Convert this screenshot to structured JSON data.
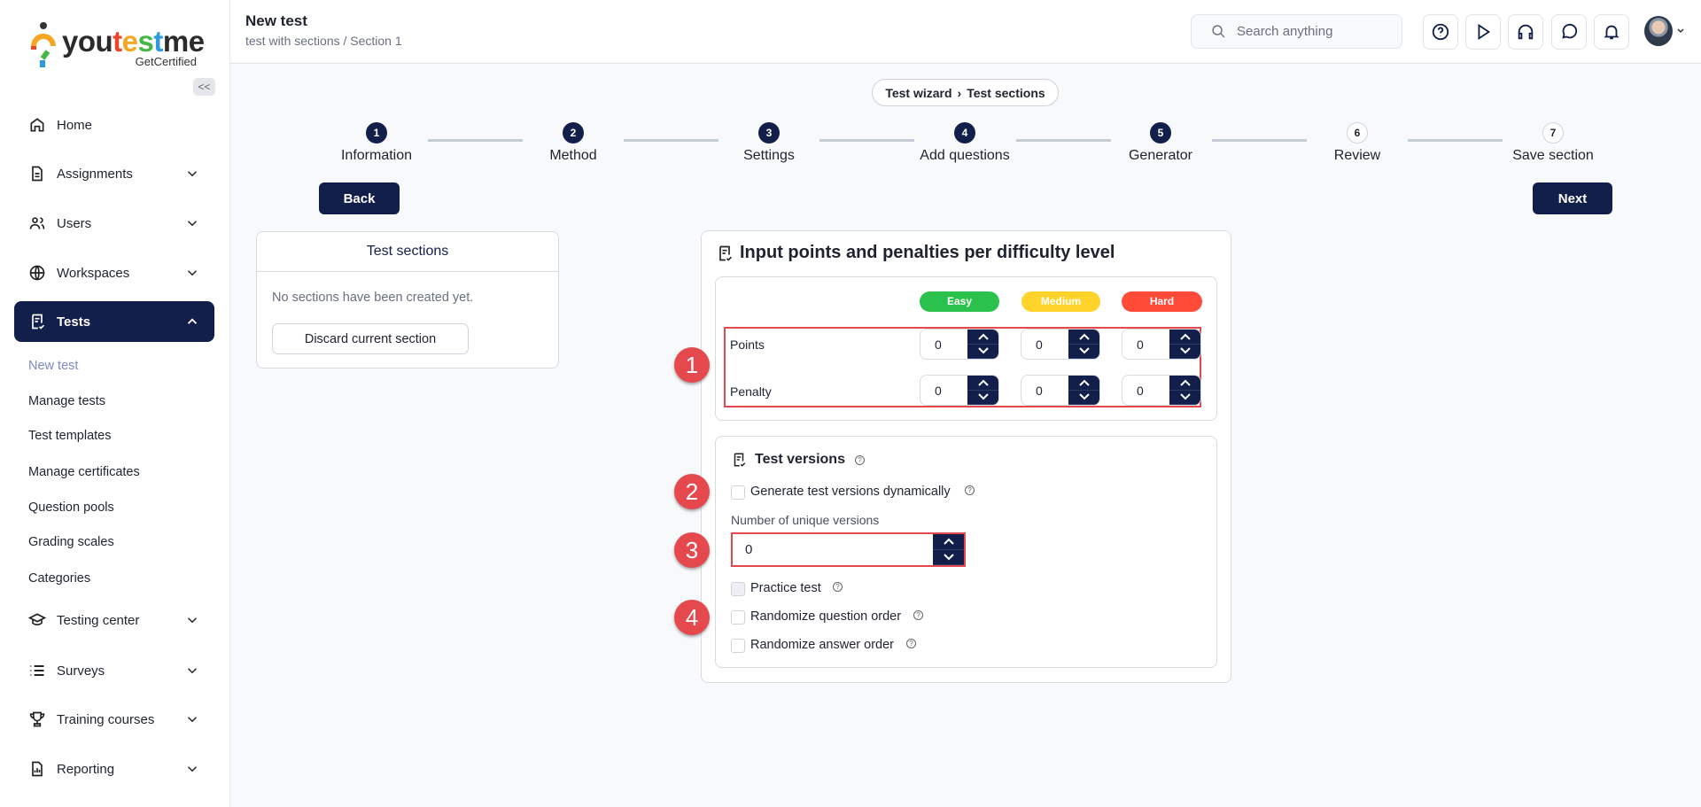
{
  "brand": {
    "name": "youtestme",
    "tagline": "GetCertified",
    "colors": {
      "navy": "#131f4b",
      "red_marker": "#e5484d"
    }
  },
  "header": {
    "title": "New test",
    "subtitle": "test with sections / Section 1",
    "search_placeholder": "Search anything",
    "icons": [
      "help-icon",
      "play-icon",
      "headset-icon",
      "chat-icon",
      "bell-icon"
    ]
  },
  "sidebar": {
    "collapse_label": "<<",
    "items": [
      {
        "label": "Home",
        "icon": "home-icon"
      },
      {
        "label": "Assignments",
        "icon": "document-icon"
      },
      {
        "label": "Users",
        "icon": "users-icon"
      },
      {
        "label": "Workspaces",
        "icon": "globe-icon"
      },
      {
        "label": "Tests",
        "icon": "test-icon",
        "active": true
      },
      {
        "label": "Testing center",
        "icon": "graduation-cap-icon"
      },
      {
        "label": "Surveys",
        "icon": "list-icon"
      },
      {
        "label": "Training courses",
        "icon": "trophy-icon"
      },
      {
        "label": "Reporting",
        "icon": "report-icon"
      }
    ],
    "sub_items": [
      "New test",
      "Manage tests",
      "Test templates",
      "Manage certificates",
      "Question pools",
      "Grading scales",
      "Categories"
    ]
  },
  "breadcrumb": [
    "Test wizard",
    "Test sections"
  ],
  "steps": [
    {
      "n": "1",
      "label": "Information",
      "done": true
    },
    {
      "n": "2",
      "label": "Method",
      "done": true
    },
    {
      "n": "3",
      "label": "Settings",
      "done": true
    },
    {
      "n": "4",
      "label": "Add questions",
      "done": true
    },
    {
      "n": "5",
      "label": "Generator",
      "done": true
    },
    {
      "n": "6",
      "label": "Review",
      "done": false
    },
    {
      "n": "7",
      "label": "Save section",
      "done": false
    }
  ],
  "buttons": {
    "back": "Back",
    "next": "Next",
    "discard": "Discard current section"
  },
  "sections_panel": {
    "title": "Test sections",
    "empty": "No sections have been created yet."
  },
  "points_panel": {
    "title": "Input points and penalties per difficulty level",
    "levels": [
      {
        "label": "Easy",
        "color": "#2ac24c"
      },
      {
        "label": "Medium",
        "color": "#ffd32a"
      },
      {
        "label": "Hard",
        "color": "#ff4b37"
      }
    ],
    "rows": [
      {
        "label": "Points",
        "values": [
          "0",
          "0",
          "0"
        ]
      },
      {
        "label": "Penalty",
        "values": [
          "0",
          "0",
          "0"
        ]
      }
    ]
  },
  "versions": {
    "title": "Test versions",
    "generate": "Generate test versions dynamically",
    "num_label": "Number of unique versions",
    "num_value": "0",
    "practice": "Practice test",
    "rand_q": "Randomize question order",
    "rand_a": "Randomize answer order"
  },
  "markers": [
    "1",
    "2",
    "3",
    "4"
  ]
}
